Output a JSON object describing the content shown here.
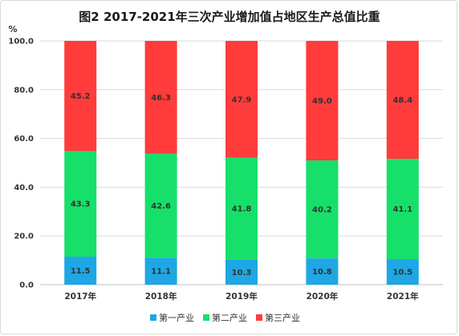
{
  "chart_data": {
    "type": "bar",
    "stacked": true,
    "title": "图2  2017-2021年三次产业增加值占地区生产总值比重",
    "ylabel": "%",
    "ylim": [
      0,
      100
    ],
    "yticks": [
      "0.0",
      "20.0",
      "40.0",
      "60.0",
      "80.0",
      "100.0"
    ],
    "categories": [
      "2017年",
      "2018年",
      "2019年",
      "2020年",
      "2021年"
    ],
    "series": [
      {
        "name": "第一产业",
        "color": "#1ea7e4",
        "values": [
          11.5,
          11.1,
          10.3,
          10.8,
          10.5
        ]
      },
      {
        "name": "第二产业",
        "color": "#16e06a",
        "values": [
          43.3,
          42.6,
          41.8,
          40.2,
          41.1
        ]
      },
      {
        "name": "第三产业",
        "color": "#ff3b3b",
        "values": [
          45.2,
          46.3,
          47.9,
          49.0,
          48.4
        ]
      }
    ],
    "grid": true,
    "legend_position": "bottom"
  }
}
